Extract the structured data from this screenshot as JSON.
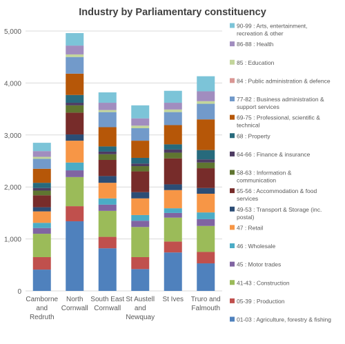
{
  "chart_data": {
    "type": "bar",
    "stacked": true,
    "title": "Industry by Parliamentary constituency",
    "xlabel": "",
    "ylabel": "",
    "ylim": [
      0,
      5000
    ],
    "yticks": [
      0,
      1000,
      2000,
      3000,
      4000,
      5000
    ],
    "ytick_labels": [
      "0",
      "1,000",
      "2,000",
      "3,000",
      "4,000",
      "5,000"
    ],
    "grid": true,
    "legend_position": "right",
    "categories": [
      [
        "Camborne",
        "and",
        "Redruth"
      ],
      [
        "North",
        "Cornwall"
      ],
      [
        "South East",
        "Cornwall"
      ],
      [
        "St Austell",
        "and",
        "Newquay"
      ],
      [
        "St Ives"
      ],
      [
        "Truro and",
        "Falmouth"
      ]
    ],
    "series": [
      {
        "name": "01-03 : Agriculture, forestry & fishing",
        "legend_lines": [
          "01-03 : Agriculture, forestry & fishing"
        ],
        "color": "#4f81bd",
        "values": [
          410,
          1340,
          820,
          420,
          740,
          530
        ]
      },
      {
        "name": "05-39 : Production",
        "legend_lines": [
          "05-39 : Production"
        ],
        "color": "#c0504d",
        "values": [
          240,
          290,
          220,
          230,
          210,
          220
        ]
      },
      {
        "name": "41-43 : Construction",
        "legend_lines": [
          "41-43 : Construction"
        ],
        "color": "#9bbb59",
        "values": [
          450,
          560,
          500,
          580,
          460,
          500
        ]
      },
      {
        "name": "45 : Motor trades",
        "legend_lines": [
          "45 : Motor trades"
        ],
        "color": "#8064a2",
        "values": [
          110,
          130,
          120,
          120,
          90,
          130
        ]
      },
      {
        "name": "46 : Wholesale",
        "legend_lines": [
          "46 : Wholesale"
        ],
        "color": "#4bacc6",
        "values": [
          100,
          150,
          120,
          110,
          90,
          130
        ]
      },
      {
        "name": "47 : Retail",
        "legend_lines": [
          "47 : Retail"
        ],
        "color": "#f79646",
        "values": [
          220,
          420,
          300,
          320,
          350,
          360
        ]
      },
      {
        "name": "49-53 : Transport & Storage (inc. postal)",
        "legend_lines": [
          "49-53 : Transport & Storage (inc.",
          "postal)"
        ],
        "color": "#2c4d75",
        "values": [
          80,
          120,
          130,
          120,
          110,
          110
        ]
      },
      {
        "name": "55-56 : Accommodation & food services",
        "legend_lines": [
          "55-56 : Accommodation & food",
          "services"
        ],
        "color": "#772c2a",
        "values": [
          230,
          420,
          310,
          400,
          500,
          380
        ]
      },
      {
        "name": "58-63 : Information & communication",
        "legend_lines": [
          "58-63 : Information &",
          "communication"
        ],
        "color": "#5f7530",
        "values": [
          90,
          140,
          110,
          100,
          110,
          110
        ]
      },
      {
        "name": "64-66 : Finance & insurance",
        "legend_lines": [
          "64-66 : Finance & insurance"
        ],
        "color": "#4d3b62",
        "values": [
          50,
          50,
          50,
          50,
          60,
          60
        ]
      },
      {
        "name": "68 : Property",
        "legend_lines": [
          "68 : Property"
        ],
        "color": "#276a7c",
        "values": [
          100,
          150,
          100,
          110,
          100,
          180
        ]
      },
      {
        "name": "69-75 : Professional, scientific & technical",
        "legend_lines": [
          "69-75 : Professional, scientific &",
          "technical"
        ],
        "color": "#b65708",
        "values": [
          270,
          410,
          370,
          330,
          370,
          590
        ]
      },
      {
        "name": "77-82 : Business administration & support services",
        "legend_lines": [
          "77-82 : Business administration &",
          "support services"
        ],
        "color": "#729aca",
        "values": [
          190,
          320,
          290,
          240,
          250,
          300
        ]
      },
      {
        "name": "84 : Public administration & defence",
        "legend_lines": [
          "84 : Public administration & defence"
        ],
        "color": "#d99694",
        "values": [
          0,
          0,
          0,
          0,
          0,
          0
        ]
      },
      {
        "name": "85 : Education",
        "legend_lines": [
          "85 : Education"
        ],
        "color": "#c3d69b",
        "values": [
          40,
          50,
          40,
          50,
          50,
          50
        ]
      },
      {
        "name": "86-88 : Health",
        "legend_lines": [
          "86-88 : Health"
        ],
        "color": "#a18dbf",
        "values": [
          110,
          170,
          140,
          140,
          130,
          190
        ]
      },
      {
        "name": "90-99 : Arts, entertainment, recreation & other",
        "legend_lines": [
          "90-99 : Arts, entertainment,",
          "recreation & other"
        ],
        "color": "#7cc4d8",
        "values": [
          160,
          240,
          200,
          250,
          230,
          290
        ]
      }
    ]
  }
}
